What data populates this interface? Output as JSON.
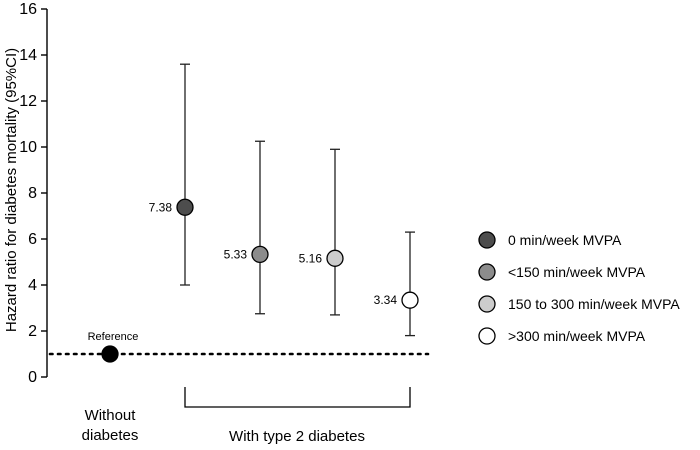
{
  "chart_data": {
    "type": "scatter",
    "ylabel": "Hazard ratio for diabetes mortality (95%CI)",
    "ylim": [
      0,
      16
    ],
    "yticks": [
      0,
      2,
      4,
      6,
      8,
      10,
      12,
      14,
      16
    ],
    "grid": false,
    "reference_line": {
      "y": 1,
      "style": "dotted"
    },
    "groups": [
      {
        "label_lines": [
          "Without",
          "diabetes"
        ]
      },
      {
        "label_lines": [
          "With type 2 diabetes"
        ]
      }
    ],
    "points": [
      {
        "group": 0,
        "value": 1.0,
        "lower": null,
        "upper": null,
        "label": "Reference",
        "color": "#000000"
      },
      {
        "group": 1,
        "value": 7.38,
        "lower": 4.0,
        "upper": 13.6,
        "label": "7.38",
        "color": "#4d4d4d"
      },
      {
        "group": 1,
        "value": 5.33,
        "lower": 2.75,
        "upper": 10.25,
        "label": "5.33",
        "color": "#8c8c8c"
      },
      {
        "group": 1,
        "value": 5.16,
        "lower": 2.7,
        "upper": 9.9,
        "label": "5.16",
        "color": "#cccccc"
      },
      {
        "group": 1,
        "value": 3.34,
        "lower": 1.8,
        "upper": 6.3,
        "label": "3.34",
        "color": "#ffffff"
      }
    ],
    "legend": {
      "position": "right",
      "entries": [
        {
          "label": "0 min/week MVPA",
          "color": "#4d4d4d"
        },
        {
          "label": "<150 min/week MVPA",
          "color": "#8c8c8c"
        },
        {
          "label": "150 to 300 min/week MVPA",
          "color": "#cccccc"
        },
        {
          "label": ">300 min/week MVPA",
          "color": "#ffffff"
        }
      ]
    }
  }
}
